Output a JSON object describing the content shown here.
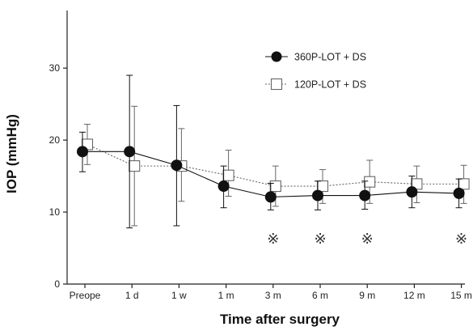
{
  "chart_data": {
    "type": "line",
    "title": "",
    "xlabel": "Time after surgery",
    "ylabel": "IOP (mmHg)",
    "categories": [
      "Preope",
      "1 d",
      "1 w",
      "1 m",
      "3 m",
      "6 m",
      "9 m",
      "12 m",
      "15 m"
    ],
    "ylim": [
      0,
      38
    ],
    "yticks": [
      0,
      10,
      20,
      30
    ],
    "grid": false,
    "legend_position": "top-right",
    "series": [
      {
        "name": "360P-LOT + DS",
        "marker": "filled-circle",
        "line_style": "solid",
        "color": "#111111",
        "values": [
          18.4,
          18.4,
          16.5,
          13.6,
          12.1,
          12.3,
          12.3,
          12.8,
          12.6
        ],
        "err_low": [
          15.6,
          7.8,
          8.1,
          10.6,
          10.3,
          10.3,
          10.4,
          10.6,
          10.6
        ],
        "err_high": [
          21.1,
          29.0,
          24.8,
          16.4,
          14.0,
          14.3,
          14.3,
          15.0,
          14.6
        ]
      },
      {
        "name": "120P-LOT + DS",
        "marker": "open-square",
        "line_style": "dotted",
        "color": "#666666",
        "values": [
          19.4,
          16.4,
          16.4,
          15.1,
          13.6,
          13.6,
          14.2,
          13.9,
          13.9
        ],
        "err_low": [
          16.6,
          8.1,
          11.5,
          12.2,
          10.8,
          11.2,
          11.2,
          11.3,
          11.2
        ],
        "err_high": [
          22.2,
          24.7,
          21.6,
          18.6,
          16.4,
          15.9,
          17.2,
          16.4,
          16.5
        ]
      }
    ],
    "annotations": {
      "symbol": "※",
      "categories": [
        "3 m",
        "6 m",
        "9 m",
        "15 m"
      ],
      "y": 6.3
    }
  }
}
